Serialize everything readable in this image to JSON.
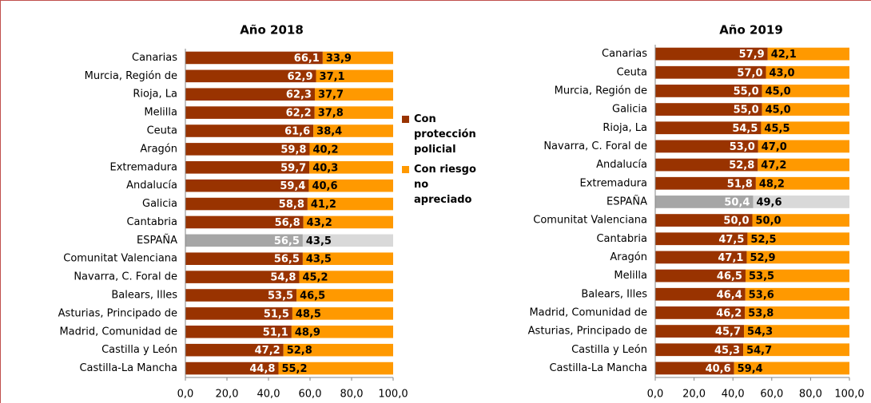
{
  "chart_data": [
    {
      "type": "stacked-bar-horizontal",
      "title": "Año 2018",
      "categories": [
        "Canarias",
        "Murcia, Región de",
        "Rioja, La",
        "Melilla",
        "Ceuta",
        "Aragón",
        "Extremadura",
        "Andalucía",
        "Galicia",
        "Cantabria",
        "ESPAÑA",
        "Comunitat Valenciana",
        "Navarra, C. Foral de",
        "Balears, Illes",
        "Asturias, Principado de",
        "Madrid, Comunidad de",
        "Castilla y León",
        "Castilla-La Mancha"
      ],
      "series": [
        {
          "name": "Con protección policial",
          "color": "#993300",
          "highlight_color": "#a6a6a6",
          "values": [
            66.1,
            62.9,
            62.3,
            62.2,
            61.6,
            59.8,
            59.7,
            59.4,
            58.8,
            56.8,
            56.5,
            56.5,
            54.8,
            53.5,
            51.5,
            51.1,
            47.2,
            44.8
          ],
          "value_labels": [
            "66,1",
            "62,9",
            "62,3",
            "62,2",
            "61,6",
            "59,8",
            "59,7",
            "59,4",
            "58,8",
            "56,8",
            "56,5",
            "56,5",
            "54,8",
            "53,5",
            "51,5",
            "51,1",
            "47,2",
            "44,8"
          ]
        },
        {
          "name": "Con riesgo no apreciado",
          "color": "#ff9900",
          "highlight_color": "#d9d9d9",
          "values": [
            33.9,
            37.1,
            37.7,
            37.8,
            38.4,
            40.2,
            40.3,
            40.6,
            41.2,
            43.2,
            43.5,
            43.5,
            45.2,
            46.5,
            48.5,
            48.9,
            52.8,
            55.2
          ],
          "value_labels": [
            "33,9",
            "37,1",
            "37,7",
            "37,8",
            "38,4",
            "40,2",
            "40,3",
            "40,6",
            "41,2",
            "43,2",
            "43,5",
            "43,5",
            "45,2",
            "46,5",
            "48,5",
            "48,9",
            "52,8",
            "55,2"
          ]
        }
      ],
      "highlight_index": 10,
      "xlim": [
        0,
        100
      ],
      "xticks": [
        {
          "value": 0,
          "label": "0,0"
        },
        {
          "value": 20,
          "label": "20,0"
        },
        {
          "value": 40,
          "label": "40,0"
        },
        {
          "value": 60,
          "label": "60,0"
        },
        {
          "value": 80,
          "label": "80,0"
        },
        {
          "value": 100,
          "label": "100,0"
        }
      ],
      "legend": "right"
    },
    {
      "type": "stacked-bar-horizontal",
      "title": "Año 2019",
      "categories": [
        "Canarias",
        "Ceuta",
        "Murcia, Región de",
        "Galicia",
        "Rioja, La",
        "Navarra, C. Foral de",
        "Andalucía",
        "Extremadura",
        "ESPAÑA",
        "Comunitat Valenciana",
        "Cantabria",
        "Aragón",
        "Melilla",
        "Balears, Illes",
        "Madrid, Comunidad de",
        "Asturias, Principado de",
        "Castilla y León",
        "Castilla-La Mancha"
      ],
      "series": [
        {
          "name": "Con protección policial",
          "color": "#993300",
          "highlight_color": "#a6a6a6",
          "values": [
            57.9,
            57.0,
            55.0,
            55.0,
            54.5,
            53.0,
            52.8,
            51.8,
            50.4,
            50.0,
            47.5,
            47.1,
            46.5,
            46.4,
            46.2,
            45.7,
            45.3,
            40.6
          ],
          "value_labels": [
            "57,9",
            "57,0",
            "55,0",
            "55,0",
            "54,5",
            "53,0",
            "52,8",
            "51,8",
            "50,4",
            "50,0",
            "47,5",
            "47,1",
            "46,5",
            "46,4",
            "46,2",
            "45,7",
            "45,3",
            "40,6"
          ]
        },
        {
          "name": "Con riesgo no apreciado",
          "color": "#ff9900",
          "highlight_color": "#d9d9d9",
          "values": [
            42.1,
            43.0,
            45.0,
            45.0,
            45.5,
            47.0,
            47.2,
            48.2,
            49.6,
            50.0,
            52.5,
            52.9,
            53.5,
            53.6,
            53.8,
            54.3,
            54.7,
            59.4
          ],
          "value_labels": [
            "42,1",
            "43,0",
            "45,0",
            "45,0",
            "45,5",
            "47,0",
            "47,2",
            "48,2",
            "49,6",
            "50,0",
            "52,5",
            "52,9",
            "53,5",
            "53,6",
            "53,8",
            "54,3",
            "54,7",
            "59,4"
          ]
        }
      ],
      "highlight_index": 8,
      "xlim": [
        0,
        100
      ],
      "xticks": [
        {
          "value": 0,
          "label": "0,0"
        },
        {
          "value": 20,
          "label": "20,0"
        },
        {
          "value": 40,
          "label": "40,0"
        },
        {
          "value": 60,
          "label": "60,0"
        },
        {
          "value": 80,
          "label": "80,0"
        },
        {
          "value": 100,
          "label": "100,0"
        }
      ]
    }
  ]
}
